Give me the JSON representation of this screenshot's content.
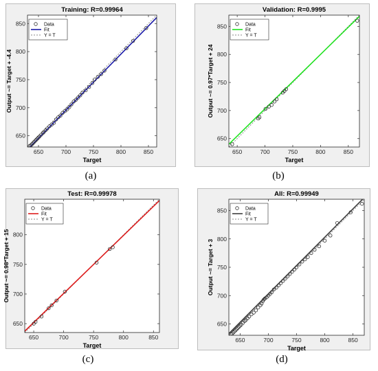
{
  "panels": [
    {
      "caption": "(a)"
    },
    {
      "caption": "(b)"
    },
    {
      "caption": "(c)"
    },
    {
      "caption": "(d)"
    }
  ],
  "chart_data": [
    {
      "type": "scatter",
      "title": "Training: R=0.99964",
      "xlabel": "Target",
      "ylabel": "Output ~= Target + -4.4",
      "xlim": [
        630,
        865
      ],
      "ylim": [
        630,
        865
      ],
      "xticks": [
        650,
        700,
        750,
        800,
        850
      ],
      "yticks": [
        650,
        700,
        750,
        800,
        850
      ],
      "legend": [
        "Data",
        "Fit",
        "Y = T"
      ],
      "fit_color": "#1a1aa8",
      "fit": {
        "slope": 1.0,
        "intercept": -4.4
      },
      "x": [
        634,
        636,
        638,
        640,
        642,
        644,
        646,
        648,
        650,
        652,
        655,
        658,
        660,
        663,
        666,
        670,
        674,
        678,
        682,
        686,
        690,
        694,
        698,
        702,
        706,
        710,
        714,
        718,
        722,
        726,
        730,
        736,
        742,
        748,
        752,
        758,
        764,
        770,
        790,
        810,
        822,
        846
      ],
      "y": [
        632,
        633,
        635,
        637,
        639,
        641,
        643,
        645,
        647,
        649,
        652,
        655,
        657,
        660,
        663,
        667,
        670,
        673,
        679,
        683,
        686,
        691,
        694,
        697,
        701,
        706,
        711,
        714,
        718,
        722,
        727,
        731,
        737,
        744,
        750,
        755,
        760,
        766,
        786,
        806,
        819,
        842
      ],
      "grid": false
    },
    {
      "type": "scatter",
      "title": "Validation: R=0.9995",
      "xlabel": "Target",
      "ylabel": "Output ~= 0.97*Target + 24",
      "xlim": [
        635,
        870
      ],
      "ylim": [
        635,
        870
      ],
      "xticks": [
        650,
        700,
        750,
        800,
        850
      ],
      "yticks": [
        650,
        700,
        750,
        800,
        850
      ],
      "legend": [
        "Data",
        "Fit",
        "Y = T"
      ],
      "fit_color": "#1ee21e",
      "fit": {
        "slope": 0.97,
        "intercept": 24
      },
      "x": [
        641,
        688,
        690,
        701,
        707,
        712,
        717,
        721,
        732,
        735,
        738,
        866
      ],
      "y": [
        640,
        686,
        688,
        703,
        707,
        710,
        716,
        720,
        732,
        735,
        738,
        860
      ],
      "grid": false
    },
    {
      "type": "scatter",
      "title": "Test: R=0.99978",
      "xlabel": "Target",
      "ylabel": "Output ~= 0.98*Target + 15",
      "xlim": [
        635,
        860
      ],
      "ylim": [
        635,
        860
      ],
      "xticks": [
        650,
        700,
        750,
        800,
        850
      ],
      "yticks": [
        650,
        700,
        750,
        800
      ],
      "legend": [
        "Data",
        "Fit",
        "Y = T"
      ],
      "fit_color": "#dd1c1c",
      "fit": {
        "slope": 0.98,
        "intercept": 15
      },
      "x": [
        650,
        653,
        663,
        675,
        680,
        688,
        702,
        755,
        777,
        782
      ],
      "y": [
        650,
        653,
        662,
        676,
        681,
        689,
        704,
        753,
        776,
        779
      ],
      "grid": false
    },
    {
      "type": "scatter",
      "title": "All: R=0.99949",
      "xlabel": "Target",
      "ylabel": "Output ~= Target + 3",
      "xlim": [
        630,
        870
      ],
      "ylim": [
        630,
        870
      ],
      "xticks": [
        650,
        700,
        750,
        800,
        850
      ],
      "yticks": [
        650,
        700,
        750,
        800,
        850
      ],
      "legend": [
        "Data",
        "Fit",
        "Y = T"
      ],
      "fit_color": "#3d3d3d",
      "fit": {
        "slope": 1.0,
        "intercept": 3
      },
      "x": [
        634,
        636,
        638,
        640,
        642,
        644,
        646,
        648,
        650,
        652,
        655,
        658,
        660,
        663,
        666,
        670,
        674,
        678,
        682,
        686,
        688,
        690,
        692,
        694,
        697,
        700,
        703,
        706,
        710,
        714,
        718,
        722,
        726,
        730,
        734,
        738,
        742,
        746,
        750,
        755,
        760,
        765,
        770,
        776,
        782,
        790,
        800,
        810,
        822,
        846,
        866
      ],
      "y": [
        632,
        633,
        635,
        637,
        639,
        641,
        643,
        645,
        647,
        649,
        652,
        655,
        657,
        660,
        663,
        667,
        670,
        674,
        679,
        683,
        686,
        690,
        693,
        695,
        697,
        700,
        703,
        706,
        711,
        714,
        718,
        722,
        726,
        730,
        734,
        738,
        742,
        746,
        750,
        755,
        760,
        764,
        768,
        775,
        781,
        787,
        797,
        806,
        828,
        847,
        862
      ],
      "grid": false
    }
  ]
}
